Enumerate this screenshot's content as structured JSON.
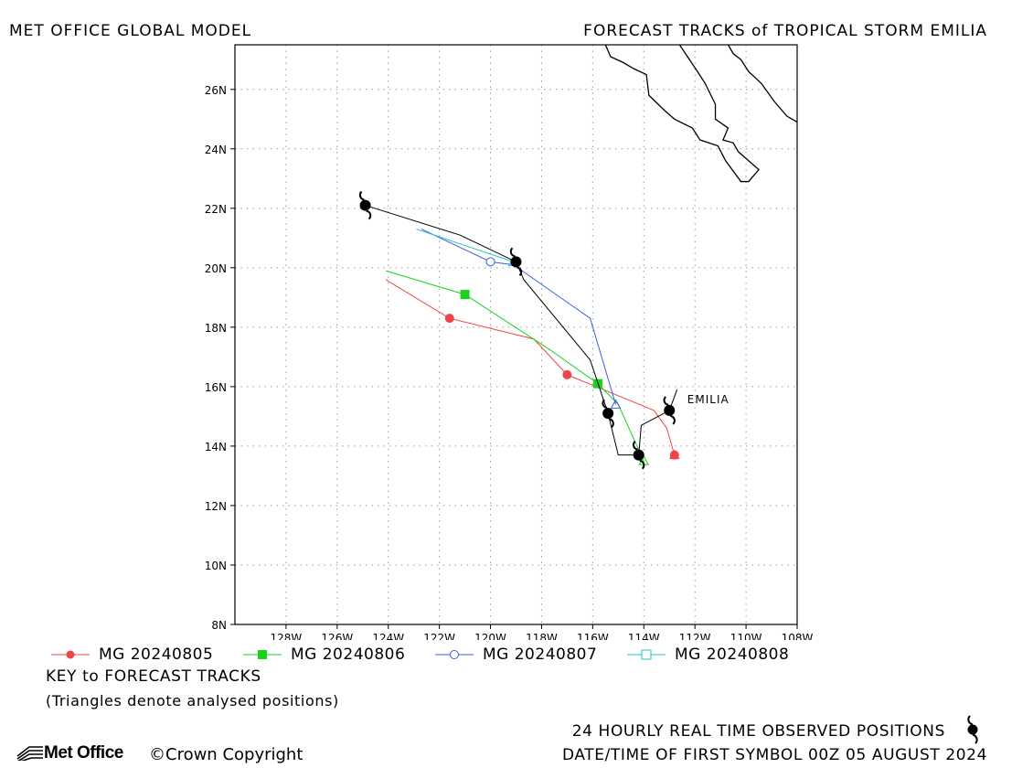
{
  "header": {
    "left_title": "MET OFFICE GLOBAL MODEL",
    "right_title": "FORECAST TRACKS of TROPICAL STORM EMILIA"
  },
  "map": {
    "lon_range": [
      -130,
      -108
    ],
    "lat_range": [
      8,
      27.5
    ],
    "x_ticks": [
      {
        "lon": -128,
        "label": "128W"
      },
      {
        "lon": -126,
        "label": "126W"
      },
      {
        "lon": -124,
        "label": "124W"
      },
      {
        "lon": -122,
        "label": "122W"
      },
      {
        "lon": -120,
        "label": "120W"
      },
      {
        "lon": -118,
        "label": "118W"
      },
      {
        "lon": -116,
        "label": "116W"
      },
      {
        "lon": -114,
        "label": "114W"
      },
      {
        "lon": -112,
        "label": "112W"
      },
      {
        "lon": -110,
        "label": "110W"
      },
      {
        "lon": -108,
        "label": "108W"
      }
    ],
    "y_ticks": [
      {
        "lat": 8,
        "label": "8N"
      },
      {
        "lat": 10,
        "label": "10N"
      },
      {
        "lat": 12,
        "label": "12N"
      },
      {
        "lat": 14,
        "label": "14N"
      },
      {
        "lat": 16,
        "label": "16N"
      },
      {
        "lat": 18,
        "label": "18N"
      },
      {
        "lat": 20,
        "label": "20N"
      },
      {
        "lat": 22,
        "label": "22N"
      },
      {
        "lat": 24,
        "label": "24N"
      },
      {
        "lat": 26,
        "label": "26N"
      }
    ],
    "grid": true,
    "storm_label": "EMILIA"
  },
  "chart_data": {
    "type": "line",
    "x_axis": "longitude",
    "y_axis": "latitude",
    "series": [
      {
        "name": "MG 20240805",
        "color": "#f04545",
        "marker": "filled-circle",
        "track": [
          [
            -112.8,
            13.7
          ],
          [
            -113.1,
            14.6
          ],
          [
            -113.6,
            15.2
          ],
          [
            -117.0,
            16.4
          ],
          [
            -118.3,
            17.6
          ],
          [
            -121.6,
            18.3
          ],
          [
            -124.1,
            19.6
          ]
        ],
        "markers": [
          [
            -112.8,
            13.7
          ],
          [
            -117.0,
            16.4
          ],
          [
            -121.6,
            18.3
          ]
        ]
      },
      {
        "name": "MG 20240806",
        "color": "#19d219",
        "marker": "filled-square",
        "track": [
          [
            -114.0,
            13.5
          ],
          [
            -115.0,
            15.4
          ],
          [
            -115.8,
            16.1
          ],
          [
            -117.6,
            17.2
          ],
          [
            -121.0,
            19.1
          ],
          [
            -124.1,
            19.9
          ]
        ],
        "markers": [
          [
            -115.8,
            16.1
          ],
          [
            -121.0,
            19.1
          ]
        ]
      },
      {
        "name": "MG 20240807",
        "color": "#3c5ee6",
        "marker": "open-circle",
        "track": [
          [
            -115.1,
            15.4
          ],
          [
            -116.1,
            18.3
          ],
          [
            -119.1,
            20.1
          ],
          [
            -120.0,
            20.2
          ],
          [
            -122.7,
            21.3
          ]
        ],
        "markers": [
          [
            -120.0,
            20.2
          ]
        ]
      },
      {
        "name": "MG 20240808",
        "color": "#25c1c1",
        "marker": "open-square",
        "track": [
          [
            -119.1,
            20.2
          ],
          [
            -122.9,
            21.3
          ]
        ],
        "markers": []
      },
      {
        "name": "Observed",
        "color": "#000000",
        "marker": "storm-symbol",
        "track": [
          [
            -112.7,
            15.9
          ],
          [
            -113.0,
            15.2
          ],
          [
            -114.1,
            14.7
          ],
          [
            -114.2,
            13.7
          ],
          [
            -115.0,
            13.7
          ],
          [
            -115.4,
            15.1
          ],
          [
            -116.1,
            16.9
          ],
          [
            -118.7,
            19.6
          ],
          [
            -119.0,
            20.2
          ],
          [
            -121.2,
            21.1
          ],
          [
            -124.9,
            22.1
          ]
        ],
        "markers": [
          [
            -113.0,
            15.2
          ],
          [
            -114.2,
            13.7
          ],
          [
            -115.4,
            15.1
          ],
          [
            -119.0,
            20.2
          ],
          [
            -124.9,
            22.1
          ]
        ]
      }
    ],
    "coastline": [
      [
        [
          -115.5,
          27.5
        ],
        [
          -115.3,
          27.1
        ],
        [
          -114.8,
          26.9
        ],
        [
          -114.4,
          26.7
        ],
        [
          -113.9,
          26.5
        ],
        [
          -113.8,
          25.8
        ],
        [
          -113.2,
          25.3
        ],
        [
          -112.8,
          25.0
        ],
        [
          -112.1,
          24.7
        ],
        [
          -111.8,
          24.3
        ],
        [
          -111.1,
          24.1
        ],
        [
          -110.8,
          23.6
        ],
        [
          -110.2,
          22.9
        ],
        [
          -109.9,
          22.9
        ],
        [
          -109.5,
          23.3
        ],
        [
          -110.3,
          23.9
        ],
        [
          -110.5,
          24.2
        ],
        [
          -110.9,
          24.3
        ],
        [
          -110.7,
          24.7
        ],
        [
          -111.2,
          25.0
        ],
        [
          -111.2,
          25.5
        ],
        [
          -111.6,
          26.2
        ],
        [
          -111.9,
          26.6
        ],
        [
          -112.6,
          27.5
        ]
      ],
      [
        [
          -110.7,
          27.5
        ],
        [
          -110.5,
          27.2
        ],
        [
          -110.2,
          27.0
        ],
        [
          -109.9,
          26.6
        ],
        [
          -109.4,
          26.2
        ],
        [
          -108.9,
          25.6
        ],
        [
          -108.4,
          25.1
        ],
        [
          -108.0,
          24.9
        ]
      ]
    ]
  },
  "legend": {
    "items": [
      {
        "label": "MG 20240805",
        "color": "#f04545",
        "marker": "filled-circle"
      },
      {
        "label": "MG 20240806",
        "color": "#19d219",
        "marker": "filled-square"
      },
      {
        "label": "MG 20240807",
        "color": "#3c5ee6",
        "marker": "open-circle"
      },
      {
        "label": "MG 20240808",
        "color": "#25c1c1",
        "marker": "open-square"
      }
    ],
    "key_title": "KEY to FORECAST TRACKS",
    "key_note": "(Triangles denote analysed positions)"
  },
  "footer": {
    "logo_text": "Met Office",
    "copyright": "©Crown Copyright",
    "observed_label": "24 HOURLY REAL TIME OBSERVED POSITIONS",
    "date_label": "DATE/TIME OF FIRST SYMBOL 00Z 05 AUGUST 2024"
  }
}
